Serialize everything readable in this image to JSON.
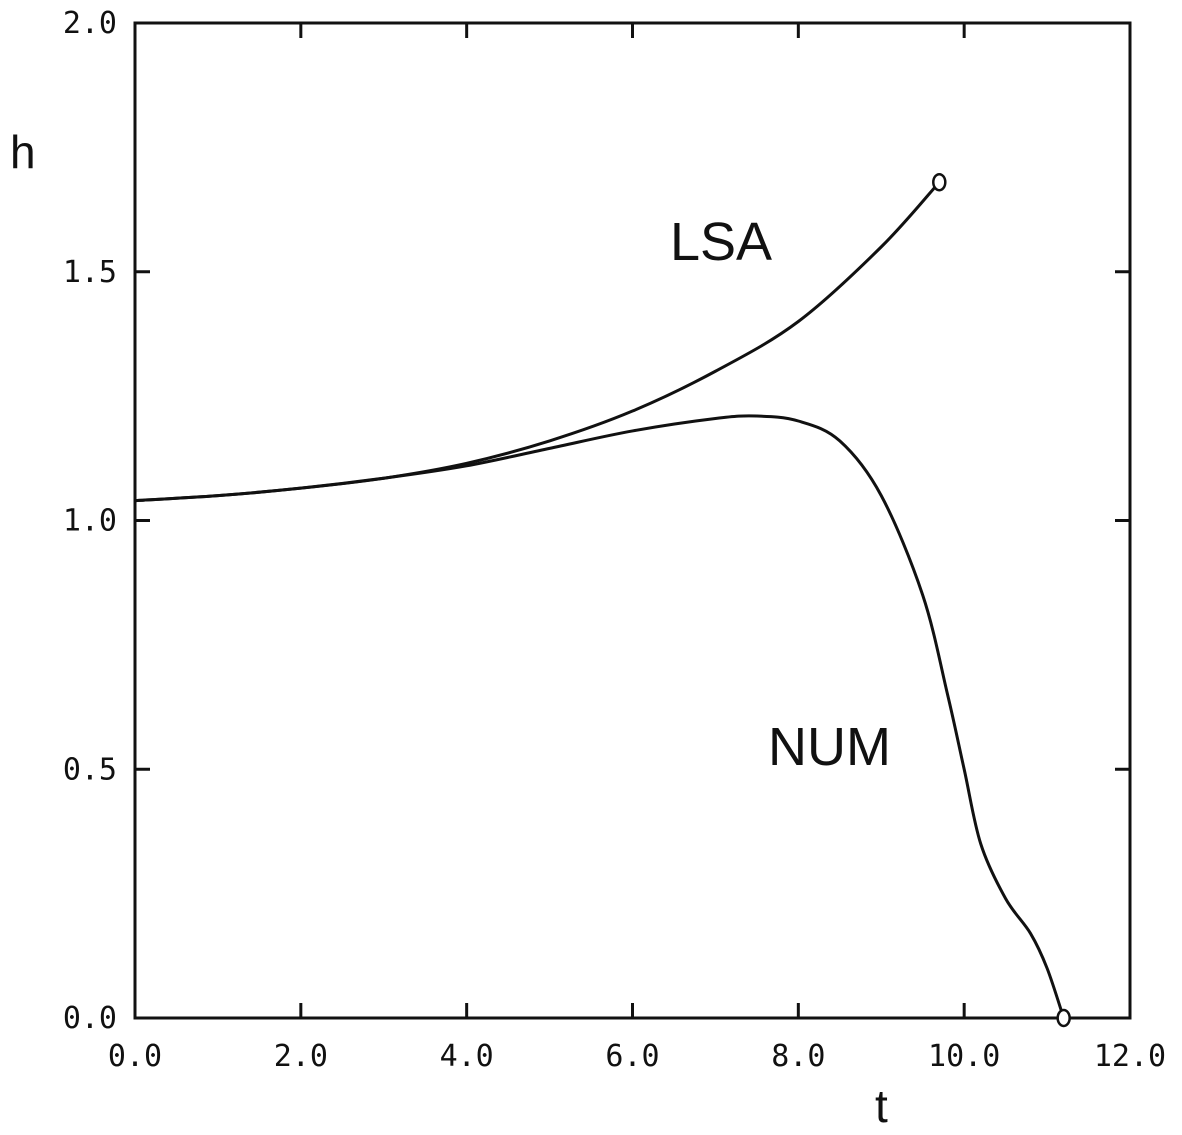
{
  "chart_data": {
    "type": "line",
    "xlabel": "t",
    "ylabel": "h",
    "xlim": [
      0,
      12
    ],
    "ylim": [
      0,
      2
    ],
    "xticks": [
      "0.0",
      "2.0",
      "4.0",
      "6.0",
      "8.0",
      "10.0",
      "12.0"
    ],
    "yticks": [
      "0.0",
      "0.5",
      "1.0",
      "1.5",
      "2.0"
    ],
    "grid": false,
    "legend": "none",
    "series": [
      {
        "name": "LSA",
        "end_marker": "circle",
        "x": [
          0.0,
          1.0,
          2.0,
          3.0,
          4.0,
          5.0,
          6.0,
          7.0,
          8.0,
          9.0,
          9.7
        ],
        "y": [
          1.04,
          1.05,
          1.065,
          1.085,
          1.115,
          1.16,
          1.22,
          1.3,
          1.4,
          1.55,
          1.68
        ]
      },
      {
        "name": "NUM",
        "end_marker": "circle",
        "x": [
          0.0,
          1.0,
          2.0,
          3.0,
          4.0,
          5.0,
          6.0,
          7.0,
          7.5,
          8.0,
          8.5,
          9.0,
          9.5,
          9.8,
          10.0,
          10.2,
          10.5,
          10.8,
          11.0,
          11.2
        ],
        "y": [
          1.04,
          1.05,
          1.065,
          1.085,
          1.11,
          1.145,
          1.18,
          1.205,
          1.21,
          1.2,
          1.16,
          1.05,
          0.85,
          0.65,
          0.5,
          0.35,
          0.24,
          0.17,
          0.1,
          0.0
        ]
      }
    ]
  }
}
